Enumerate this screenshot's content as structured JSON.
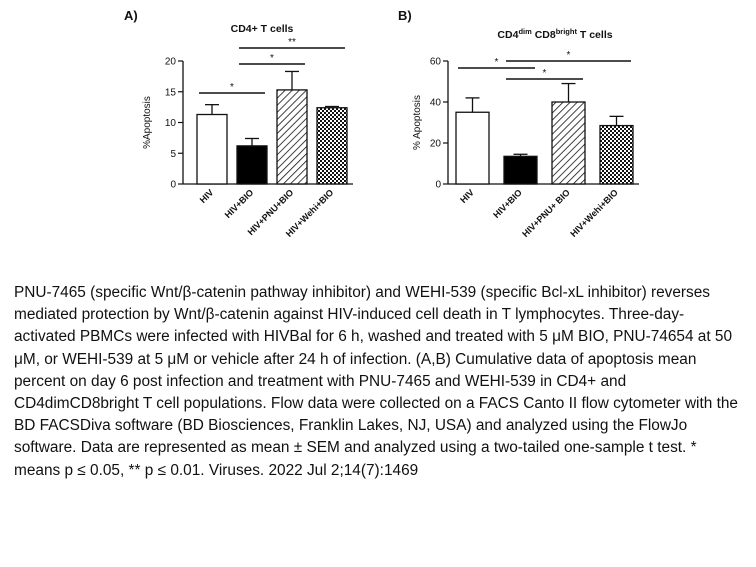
{
  "chart_data": [
    {
      "type": "bar",
      "panel": "A)",
      "title": "CD4+ T cells",
      "ylabel": "%Apoptosis",
      "ylim": [
        0,
        20
      ],
      "yticks": [
        0,
        5,
        10,
        15,
        20
      ],
      "categories": [
        "HIV",
        "HIV+BIO",
        "HIV+PNU+BIO",
        "HIV+Wehi+BIO"
      ],
      "values": [
        11.3,
        6.2,
        15.3,
        12.4
      ],
      "errors": [
        1.6,
        1.2,
        3.0,
        0.2
      ],
      "patterns": [
        "open",
        "solid",
        "diagonal-hatch",
        "crosshatch"
      ],
      "significance": [
        {
          "from": 0,
          "to": 1,
          "label": "*"
        },
        {
          "from": 1,
          "to": 2,
          "label": "*"
        },
        {
          "from": 1,
          "to": 3,
          "label": "**"
        }
      ]
    },
    {
      "type": "bar",
      "panel": "B)",
      "title": {
        "t1": "CD4",
        "t1sup": "dim",
        "t2": " CD8",
        "t2sup": "bright",
        "t3": " T cells"
      },
      "ylabel": "% Apoptosis",
      "ylim": [
        0,
        60
      ],
      "yticks": [
        0,
        20,
        40,
        60
      ],
      "categories": [
        "HIV",
        "HIV+BIO",
        "HIV+PNU+ BIO",
        "HIV+Wehi+BIO"
      ],
      "values": [
        35,
        13.5,
        40,
        28.5
      ],
      "errors": [
        7,
        1,
        9,
        4.5
      ],
      "patterns": [
        "open",
        "solid",
        "diagonal-hatch",
        "crosshatch"
      ],
      "significance": [
        {
          "from": 0,
          "to": 1,
          "label": "*"
        },
        {
          "from": 1,
          "to": 2,
          "label": "*"
        },
        {
          "from": 1,
          "to": 3,
          "label": "*"
        }
      ]
    }
  ],
  "caption": "PNU-7465 (specific Wnt/β-catenin pathway inhibitor) and WEHI-539 (specific Bcl-xL inhibitor) reverses mediated protection by Wnt/β-catenin against HIV-induced cell death in T lymphocytes. Three-day-activated PBMCs were infected with HIVBal for 6 h, washed and treated with 5 μM BIO, PNU-74654 at 50 μM, or WEHI-539 at 5 μM or vehicle after 24 h of infection. (A,B) Cumulative data of apoptosis mean percent on day 6 post infection and treatment with PNU-7465 and WEHI-539 in CD4+ and CD4dimCD8bright T cell populations. Flow data were collected on a FACS Canto II flow cytometer with the BD FACSDiva software (BD Biosciences, Franklin Lakes, NJ, USA) and analyzed using the FlowJo software. Data are represented as mean ± SEM and analyzed using a two-tailed one-sample t test. * means p ≤ 0.05, ** p ≤ 0.01. Viruses. 2022 Jul 2;14(7):1469"
}
